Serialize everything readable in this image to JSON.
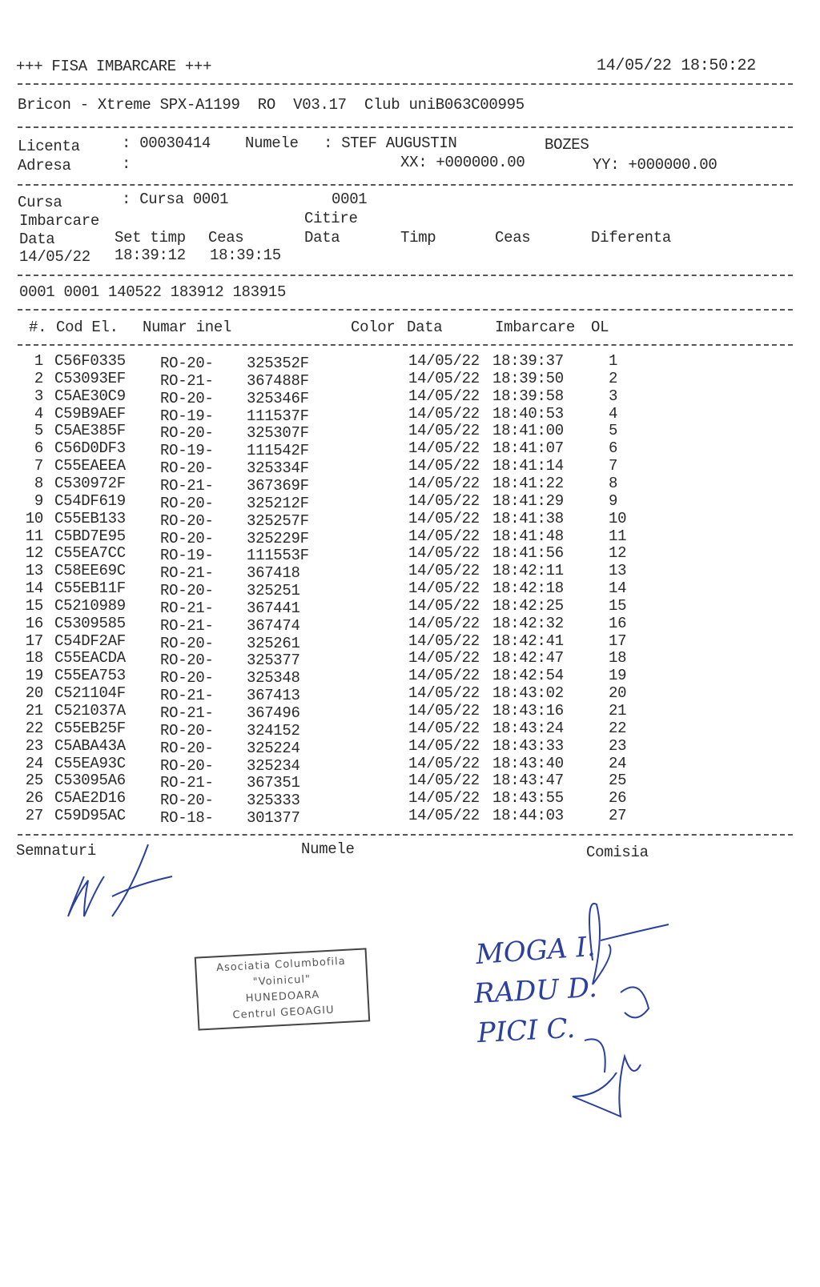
{
  "header": {
    "title": "+++ FISA IMBARCARE +++",
    "datetime": "14/05/22 18:50:22",
    "device_line": "Bricon - Xtreme SPX-A1199  RO  V03.17  Club uniB063C00995"
  },
  "owner": {
    "licenta_label": "Licenta",
    "licenta_value": ": 00030414",
    "numele_label": "Numele",
    "numele_value": ": STEF AUGUSTIN",
    "locality": "BOZES",
    "adresa_label": "Adresa",
    "adresa_value": ":",
    "xx": "XX: +000000.00",
    "yy": "YY: +000000.00"
  },
  "race": {
    "cursa_label": "Cursa",
    "cursa_value": ": Cursa 0001",
    "cursa_code": "0001",
    "imbarcare_label": "Imbarcare",
    "citire_label": "Citire",
    "col_data": "Data",
    "col_set_timp": "Set timp",
    "col_ceas": "Ceas",
    "col_data2": "Data",
    "col_timp": "Timp",
    "col_ceas2": "Ceas",
    "col_diferenta": "Diferenta",
    "data_value": "14/05/22",
    "set_timp_value": "18:39:12",
    "ceas_value": "18:39:15",
    "code_line": "0001 0001 140522 183912 183915"
  },
  "table": {
    "headers": {
      "num": "#.",
      "cod": "Cod El.",
      "inel": "Numar inel",
      "color": "Color",
      "data": "Data",
      "imbarcare": "Imbarcare",
      "ol": "OL"
    },
    "rows": [
      {
        "n": "1",
        "cod": "C56F0335",
        "pre": "RO-20-",
        "ring": "325352F",
        "date": "14/05/22",
        "time": "18:39:37",
        "ol": "1"
      },
      {
        "n": "2",
        "cod": "C53093EF",
        "pre": "RO-21-",
        "ring": "367488F",
        "date": "14/05/22",
        "time": "18:39:50",
        "ol": "2"
      },
      {
        "n": "3",
        "cod": "C5AE30C9",
        "pre": "RO-20-",
        "ring": "325346F",
        "date": "14/05/22",
        "time": "18:39:58",
        "ol": "3"
      },
      {
        "n": "4",
        "cod": "C59B9AEF",
        "pre": "RO-19-",
        "ring": "111537F",
        "date": "14/05/22",
        "time": "18:40:53",
        "ol": "4"
      },
      {
        "n": "5",
        "cod": "C5AE385F",
        "pre": "RO-20-",
        "ring": "325307F",
        "date": "14/05/22",
        "time": "18:41:00",
        "ol": "5"
      },
      {
        "n": "6",
        "cod": "C56D0DF3",
        "pre": "RO-19-",
        "ring": "111542F",
        "date": "14/05/22",
        "time": "18:41:07",
        "ol": "6"
      },
      {
        "n": "7",
        "cod": "C55EAEEA",
        "pre": "RO-20-",
        "ring": "325334F",
        "date": "14/05/22",
        "time": "18:41:14",
        "ol": "7"
      },
      {
        "n": "8",
        "cod": "C530972F",
        "pre": "RO-21-",
        "ring": "367369F",
        "date": "14/05/22",
        "time": "18:41:22",
        "ol": "8"
      },
      {
        "n": "9",
        "cod": "C54DF619",
        "pre": "RO-20-",
        "ring": "325212F",
        "date": "14/05/22",
        "time": "18:41:29",
        "ol": "9"
      },
      {
        "n": "10",
        "cod": "C55EB133",
        "pre": "RO-20-",
        "ring": "325257F",
        "date": "14/05/22",
        "time": "18:41:38",
        "ol": "10"
      },
      {
        "n": "11",
        "cod": "C5BD7E95",
        "pre": "RO-20-",
        "ring": "325229F",
        "date": "14/05/22",
        "time": "18:41:48",
        "ol": "11"
      },
      {
        "n": "12",
        "cod": "C55EA7CC",
        "pre": "RO-19-",
        "ring": "111553F",
        "date": "14/05/22",
        "time": "18:41:56",
        "ol": "12"
      },
      {
        "n": "13",
        "cod": "C58EE69C",
        "pre": "RO-21-",
        "ring": "367418",
        "date": "14/05/22",
        "time": "18:42:11",
        "ol": "13"
      },
      {
        "n": "14",
        "cod": "C55EB11F",
        "pre": "RO-20-",
        "ring": "325251",
        "date": "14/05/22",
        "time": "18:42:18",
        "ol": "14"
      },
      {
        "n": "15",
        "cod": "C5210989",
        "pre": "RO-21-",
        "ring": "367441",
        "date": "14/05/22",
        "time": "18:42:25",
        "ol": "15"
      },
      {
        "n": "16",
        "cod": "C5309585",
        "pre": "RO-21-",
        "ring": "367474",
        "date": "14/05/22",
        "time": "18:42:32",
        "ol": "16"
      },
      {
        "n": "17",
        "cod": "C54DF2AF",
        "pre": "RO-20-",
        "ring": "325261",
        "date": "14/05/22",
        "time": "18:42:41",
        "ol": "17"
      },
      {
        "n": "18",
        "cod": "C55EACDA",
        "pre": "RO-20-",
        "ring": "325377",
        "date": "14/05/22",
        "time": "18:42:47",
        "ol": "18"
      },
      {
        "n": "19",
        "cod": "C55EA753",
        "pre": "RO-20-",
        "ring": "325348",
        "date": "14/05/22",
        "time": "18:42:54",
        "ol": "19"
      },
      {
        "n": "20",
        "cod": "C521104F",
        "pre": "RO-21-",
        "ring": "367413",
        "date": "14/05/22",
        "time": "18:43:02",
        "ol": "20"
      },
      {
        "n": "21",
        "cod": "C521037A",
        "pre": "RO-21-",
        "ring": "367496",
        "date": "14/05/22",
        "time": "18:43:16",
        "ol": "21"
      },
      {
        "n": "22",
        "cod": "C55EB25F",
        "pre": "RO-20-",
        "ring": "324152",
        "date": "14/05/22",
        "time": "18:43:24",
        "ol": "22"
      },
      {
        "n": "23",
        "cod": "C5ABA43A",
        "pre": "RO-20-",
        "ring": "325224",
        "date": "14/05/22",
        "time": "18:43:33",
        "ol": "23"
      },
      {
        "n": "24",
        "cod": "C55EA93C",
        "pre": "RO-20-",
        "ring": "325234",
        "date": "14/05/22",
        "time": "18:43:40",
        "ol": "24"
      },
      {
        "n": "25",
        "cod": "C53095A6",
        "pre": "RO-21-",
        "ring": "367351",
        "date": "14/05/22",
        "time": "18:43:47",
        "ol": "25"
      },
      {
        "n": "26",
        "cod": "C5AE2D16",
        "pre": "RO-20-",
        "ring": "325333",
        "date": "14/05/22",
        "time": "18:43:55",
        "ol": "26"
      },
      {
        "n": "27",
        "cod": "C59D95AC",
        "pre": "RO-18-",
        "ring": "301377",
        "date": "14/05/22",
        "time": "18:44:03",
        "ol": "27"
      }
    ]
  },
  "footer": {
    "semnaturi_label": "Semnaturi",
    "numele_label": "Numele",
    "comisia_label": "Comisia",
    "commission_names": [
      "MOGA I.",
      "RADU D.",
      "PICI C."
    ],
    "stamp_lines": [
      "Asociatia Columbofila",
      "\"Voinicul\"",
      "HUNEDOARA",
      "Centrul GEOAGIU"
    ]
  },
  "colors": {
    "ink": "#2a2a2a",
    "pen": "#2b3f9e"
  }
}
